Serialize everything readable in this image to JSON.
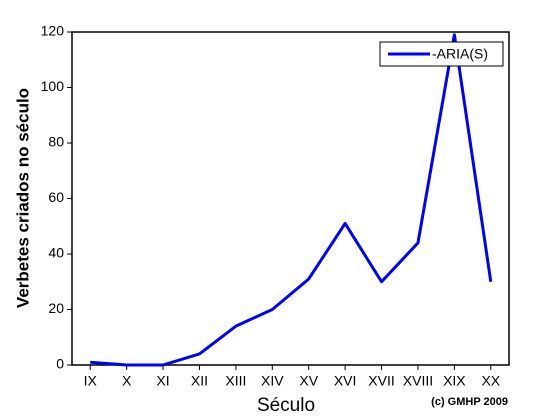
{
  "chart_data": {
    "type": "line",
    "xlabel": "Século",
    "ylabel": "Verbetes criados no século",
    "annotation": "(c) GMHP 2009",
    "categories": [
      "IX",
      "X",
      "XI",
      "XII",
      "XIII",
      "XIV",
      "XV",
      "XVI",
      "XVII",
      "XVIII",
      "XIX",
      "XX"
    ],
    "series": [
      {
        "name": "-ARIA(S)",
        "color": "#0000ff",
        "values": [
          1,
          0,
          0,
          4,
          14,
          20,
          31,
          51,
          30,
          44,
          119,
          30
        ]
      }
    ],
    "ylim": [
      0,
      120
    ],
    "yticks": [
      0,
      20,
      40,
      60,
      80,
      100,
      120
    ],
    "grid": false,
    "legend": "upper-right"
  }
}
